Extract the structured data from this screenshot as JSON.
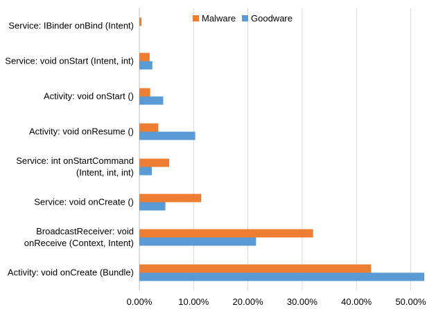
{
  "chart_data": {
    "type": "bar",
    "orientation": "horizontal",
    "categories": [
      [
        "Service: IBinder onBind (Intent)"
      ],
      [
        "Service: void onStart (Intent, int)"
      ],
      [
        "Activity: void onStart ()"
      ],
      [
        "Activity: void onResume ()"
      ],
      [
        "Service: int onStartCommand",
        "(Intent, int, int)"
      ],
      [
        "Service: void onCreate ()"
      ],
      [
        "BroadcastReceiver: void",
        "onReceive (Context, Intent)"
      ],
      [
        "Activity: void onCreate (Bundle)"
      ]
    ],
    "series": [
      {
        "name": "Malware",
        "color": "#ED7D31",
        "values": [
          0.4,
          1.9,
          2.0,
          3.5,
          5.5,
          11.4,
          32.0,
          42.7
        ]
      },
      {
        "name": "Goodware",
        "color": "#5B9BD5",
        "values": [
          0.0,
          2.4,
          4.4,
          10.3,
          2.3,
          4.8,
          21.5,
          52.5
        ]
      }
    ],
    "xlim": [
      0,
      53
    ],
    "xticks": [
      0,
      10,
      20,
      30,
      40,
      50
    ],
    "xtick_labels": [
      "0.00%",
      "10.00%",
      "20.00%",
      "30.00%",
      "40.00%",
      "50.00%"
    ],
    "title": "",
    "xlabel": "",
    "ylabel": "",
    "grid": "vertical",
    "legend_position": "top"
  }
}
